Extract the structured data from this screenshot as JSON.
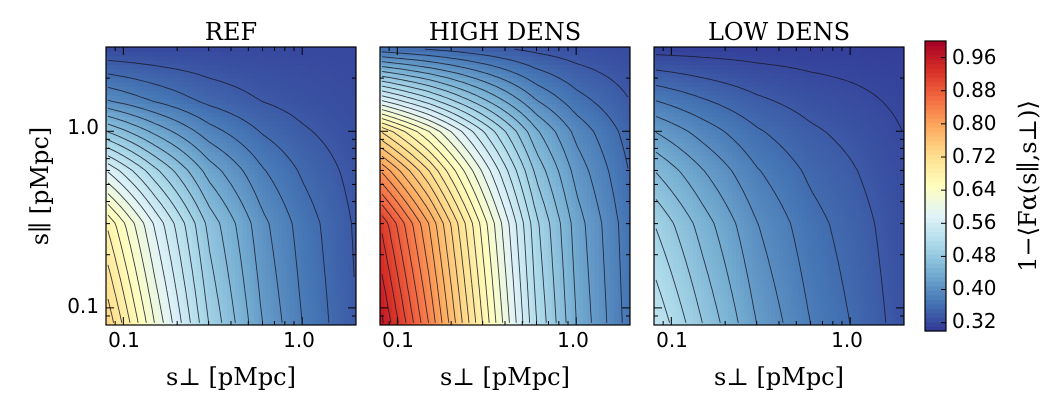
{
  "chart_data": [
    {
      "type": "heatmap",
      "title": "REF",
      "xlabel": "s⊥ [pMpc]",
      "ylabel": "s∥ [pMpc]",
      "xscale": "log",
      "yscale": "log",
      "xlim": [
        0.08,
        2.0
      ],
      "ylim": [
        0.08,
        3.0
      ],
      "xticks": [
        {
          "value": 0.1,
          "label": "0.1"
        },
        {
          "value": 1.0,
          "label": "1.0"
        }
      ],
      "yticks": [
        {
          "value": 0.1,
          "label": "0.1"
        },
        {
          "value": 1.0,
          "label": "1.0"
        }
      ],
      "field": {
        "corner_low_low": 0.74,
        "along_x_at_low_s_par": [
          {
            "x": 0.08,
            "v": 0.74
          },
          {
            "x": 0.15,
            "v": 0.62
          },
          {
            "x": 0.3,
            "v": 0.5
          },
          {
            "x": 0.6,
            "v": 0.42
          },
          {
            "x": 1.0,
            "v": 0.38
          },
          {
            "x": 2.0,
            "v": 0.34
          }
        ],
        "along_y_at_low_s_perp": [
          {
            "y": 0.08,
            "v": 0.74
          },
          {
            "y": 0.3,
            "v": 0.68
          },
          {
            "y": 0.6,
            "v": 0.58
          },
          {
            "y": 1.0,
            "v": 0.48
          },
          {
            "y": 1.5,
            "v": 0.4
          },
          {
            "y": 3.0,
            "v": 0.32
          }
        ],
        "floor": 0.32
      },
      "contours": "black thin lines, levels 0.32–0.96 step 0.02"
    },
    {
      "type": "heatmap",
      "title": "HIGH DENS",
      "xlabel": "s⊥ [pMpc]",
      "xscale": "log",
      "yscale": "log",
      "xlim": [
        0.08,
        2.0
      ],
      "ylim": [
        0.08,
        3.0
      ],
      "xticks": [
        {
          "value": 0.1,
          "label": "0.1"
        },
        {
          "value": 1.0,
          "label": "1.0"
        }
      ],
      "field": {
        "corner_low_low": 0.97,
        "along_x_at_low_s_par": [
          {
            "x": 0.08,
            "v": 0.97
          },
          {
            "x": 0.15,
            "v": 0.84
          },
          {
            "x": 0.3,
            "v": 0.68
          },
          {
            "x": 0.6,
            "v": 0.52
          },
          {
            "x": 1.0,
            "v": 0.44
          },
          {
            "x": 2.0,
            "v": 0.37
          }
        ],
        "along_y_at_low_s_perp": [
          {
            "y": 0.08,
            "v": 0.97
          },
          {
            "y": 0.3,
            "v": 0.92
          },
          {
            "y": 0.6,
            "v": 0.82
          },
          {
            "y": 1.0,
            "v": 0.72
          },
          {
            "y": 1.5,
            "v": 0.58
          },
          {
            "y": 3.0,
            "v": 0.36
          }
        ],
        "floor": 0.32
      },
      "contours": "black thin lines, levels 0.32–0.96 step 0.02"
    },
    {
      "type": "heatmap",
      "title": "LOW DENS",
      "xlabel": "s⊥ [pMpc]",
      "xscale": "log",
      "yscale": "log",
      "xlim": [
        0.08,
        2.0
      ],
      "ylim": [
        0.08,
        3.0
      ],
      "xticks": [
        {
          "value": 0.1,
          "label": "0.1"
        },
        {
          "value": 1.0,
          "label": "1.0"
        }
      ],
      "field": {
        "corner_low_low": 0.54,
        "along_x_at_low_s_par": [
          {
            "x": 0.08,
            "v": 0.54
          },
          {
            "x": 0.15,
            "v": 0.48
          },
          {
            "x": 0.3,
            "v": 0.42
          },
          {
            "x": 0.6,
            "v": 0.38
          },
          {
            "x": 1.0,
            "v": 0.36
          },
          {
            "x": 2.0,
            "v": 0.33
          }
        ],
        "along_y_at_low_s_perp": [
          {
            "y": 0.08,
            "v": 0.54
          },
          {
            "y": 0.3,
            "v": 0.5
          },
          {
            "y": 0.6,
            "v": 0.46
          },
          {
            "y": 1.0,
            "v": 0.42
          },
          {
            "y": 1.5,
            "v": 0.38
          },
          {
            "y": 3.0,
            "v": 0.31
          }
        ],
        "floor": 0.31
      },
      "contours": "black thin lines, levels 0.32–0.96 step 0.02"
    }
  ],
  "colorbar": {
    "label": "1−⟨Fα(s∥,s⊥)⟩",
    "range": [
      0.3,
      1.0
    ],
    "ticks": [
      "0.96",
      "0.88",
      "0.80",
      "0.72",
      "0.64",
      "0.56",
      "0.48",
      "0.40",
      "0.32"
    ],
    "tick_values": [
      0.96,
      0.88,
      0.8,
      0.72,
      0.64,
      0.56,
      0.48,
      0.4,
      0.32
    ],
    "colormap": [
      "#313695",
      "#4575b4",
      "#74add1",
      "#abd9e9",
      "#e0f3f8",
      "#ffffbf",
      "#fee090",
      "#fdae61",
      "#f46d43",
      "#d73027",
      "#a50026"
    ]
  }
}
